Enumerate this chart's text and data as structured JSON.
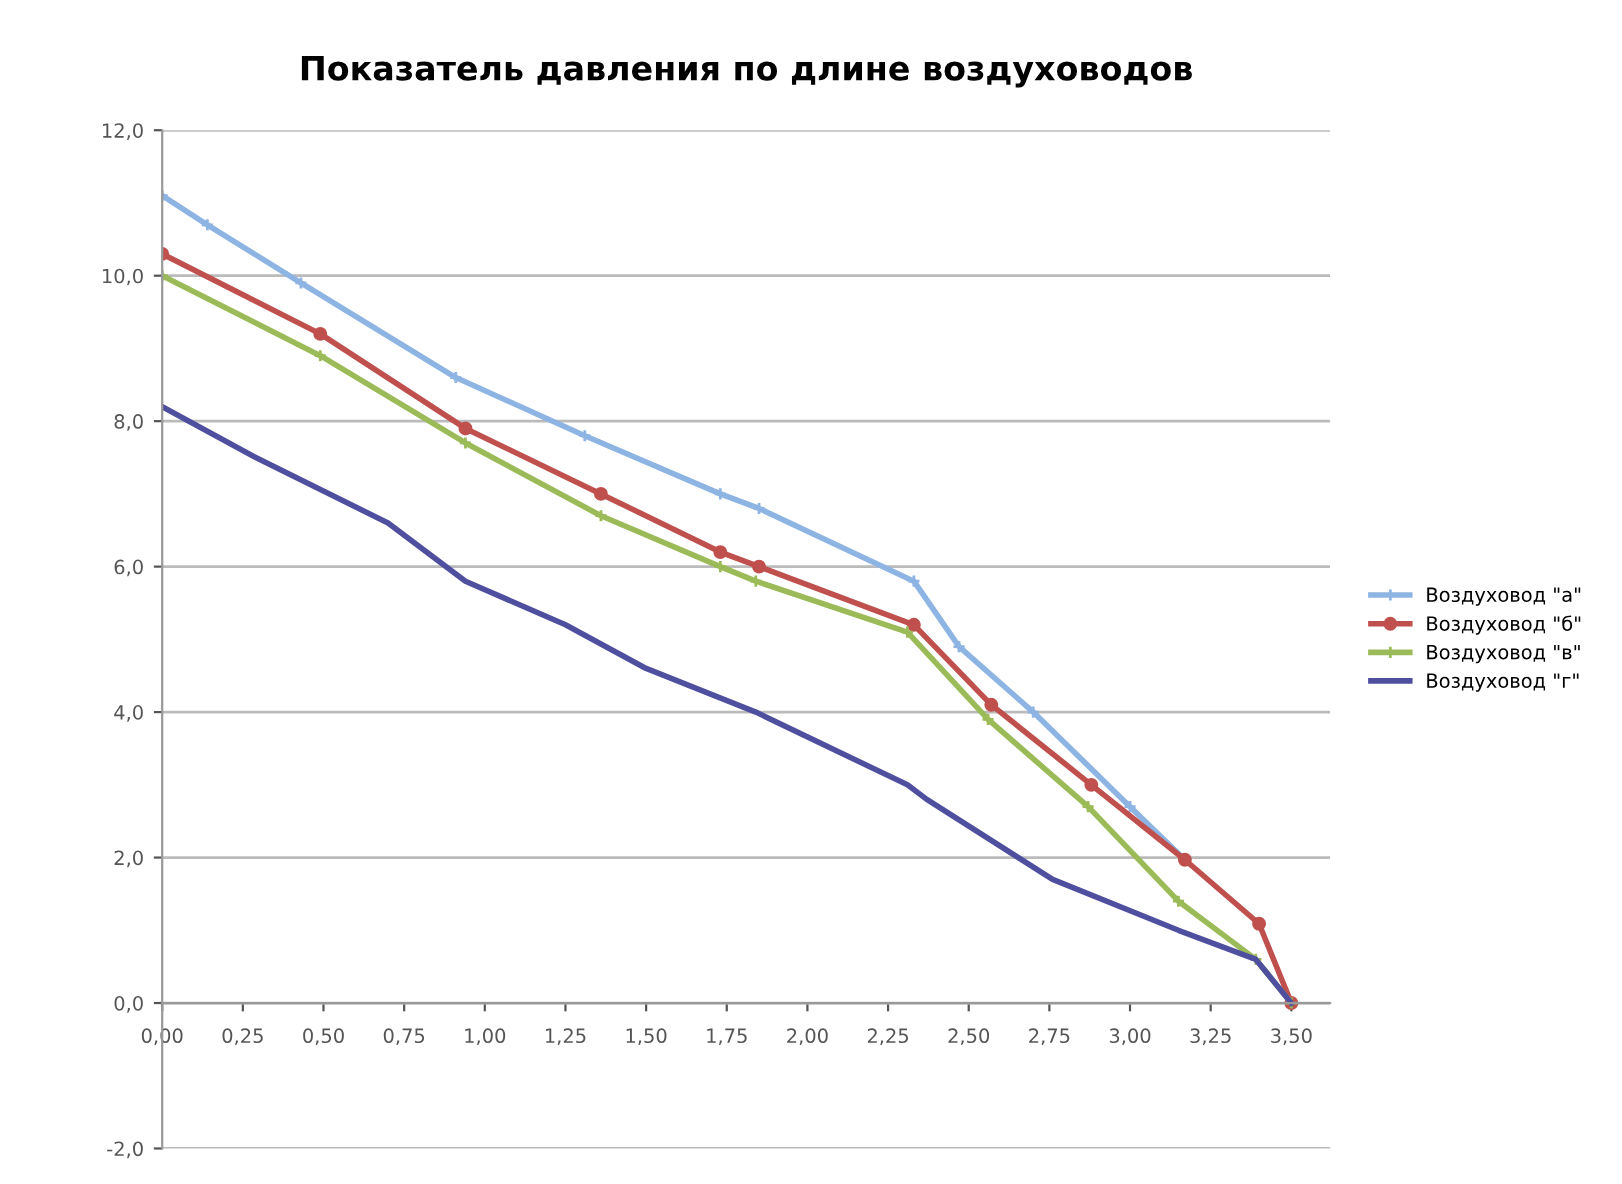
{
  "chart_data": {
    "type": "line",
    "title": "Показатель давления по длине воздуховодов",
    "xlim": [
      0,
      3.62
    ],
    "ylim": [
      -2,
      12
    ],
    "xticks": [
      {
        "value": 0,
        "label": "0,00"
      },
      {
        "value": 0.25,
        "label": "0,25"
      },
      {
        "value": 0.5,
        "label": "0,50"
      },
      {
        "value": 0.75,
        "label": "0,75"
      },
      {
        "value": 1,
        "label": "1,00"
      },
      {
        "value": 1.25,
        "label": "1,25"
      },
      {
        "value": 1.5,
        "label": "1,50"
      },
      {
        "value": 1.75,
        "label": "1,75"
      },
      {
        "value": 2,
        "label": "2,00"
      },
      {
        "value": 2.25,
        "label": "2,25"
      },
      {
        "value": 2.5,
        "label": "2,50"
      },
      {
        "value": 2.75,
        "label": "2,75"
      },
      {
        "value": 3,
        "label": "3,00"
      },
      {
        "value": 3.25,
        "label": "3,25"
      },
      {
        "value": 3.5,
        "label": "3,50"
      }
    ],
    "yticks": [
      {
        "value": -2,
        "label": "-2,0"
      },
      {
        "value": 0,
        "label": "0,0"
      },
      {
        "value": 2,
        "label": "2,0"
      },
      {
        "value": 4,
        "label": "4,0"
      },
      {
        "value": 6,
        "label": "6,0"
      },
      {
        "value": 8,
        "label": "8,0"
      },
      {
        "value": 10,
        "label": "10,0"
      },
      {
        "value": 12,
        "label": "12,0"
      }
    ],
    "grid": "y",
    "legend": "right",
    "series": [
      {
        "name": "Воздуховод \"а\"",
        "color": "#8db4e2",
        "marker": "cross",
        "x": [
          0,
          0.14,
          0.43,
          0.91,
          1.31,
          1.73,
          1.85,
          2.33,
          2.47,
          2.7,
          3.0,
          3.17
        ],
        "values": [
          11.1,
          10.7,
          9.9,
          8.6,
          7.8,
          7.0,
          6.8,
          5.8,
          4.9,
          4.0,
          2.7,
          1.97
        ]
      },
      {
        "name": "Воздуховод \"б\"",
        "color": "#c0504d",
        "marker": "circle",
        "x": [
          0,
          0.49,
          0.94,
          1.36,
          1.73,
          1.85,
          2.33,
          2.57,
          2.88,
          3.17,
          3.4,
          3.5
        ],
        "values": [
          10.3,
          9.2,
          7.9,
          7.0,
          6.2,
          6.0,
          5.2,
          4.1,
          3.0,
          1.97,
          1.09,
          0
        ]
      },
      {
        "name": "Воздуховод \"в\"",
        "color": "#9bbb59",
        "marker": "cross",
        "x": [
          0,
          0.49,
          0.94,
          1.36,
          1.73,
          1.84,
          2.31,
          2.56,
          2.87,
          3.15,
          3.39,
          3.5
        ],
        "values": [
          10.0,
          8.9,
          7.7,
          6.7,
          6.0,
          5.8,
          5.1,
          3.9,
          2.7,
          1.4,
          0.6,
          0
        ]
      },
      {
        "name": "Воздуховод \"г\"",
        "color": "#4f4f9f",
        "marker": "none",
        "x": [
          0,
          0.29,
          0.7,
          0.94,
          1.25,
          1.5,
          1.84,
          2.31,
          2.37,
          2.76,
          3.15,
          3.39,
          3.5
        ],
        "values": [
          8.2,
          7.5,
          6.6,
          5.8,
          5.2,
          4.6,
          4.0,
          3.0,
          2.8,
          1.7,
          1.0,
          0.6,
          0
        ]
      }
    ]
  }
}
